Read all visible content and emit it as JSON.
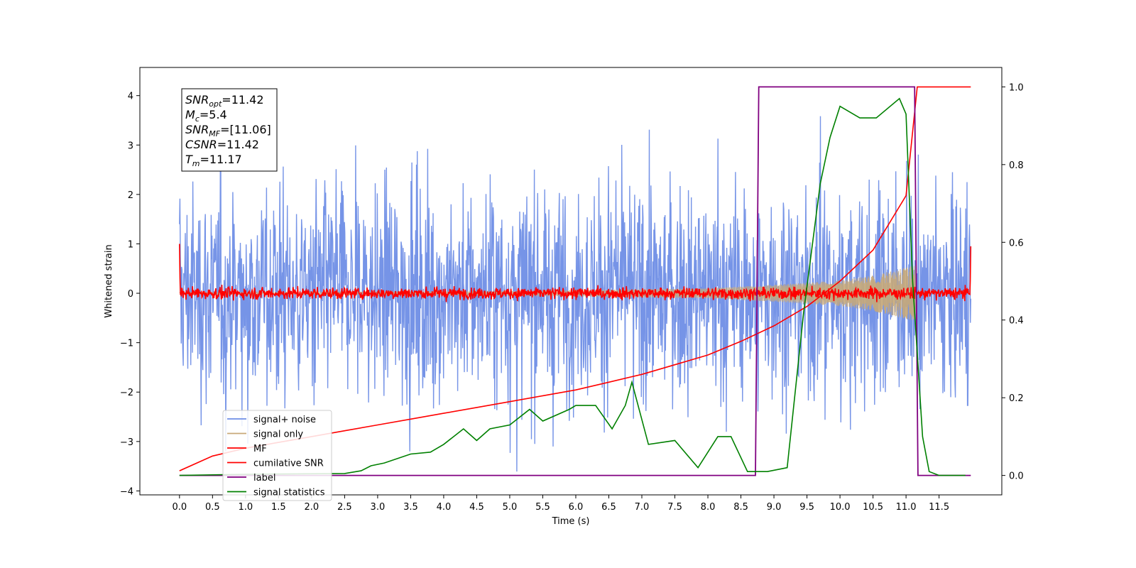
{
  "chart_data": {
    "type": "line",
    "xlabel": "Time (s)",
    "ylabel": "Whitened strain",
    "xlim": [
      -0.6,
      12.45
    ],
    "ylim": [
      -4.08,
      4.57
    ],
    "y2lim": [
      -0.05,
      1.05
    ],
    "x_ticks": [
      "0.0",
      "0.5",
      "1.0",
      "1.5",
      "2.0",
      "2.5",
      "3.0",
      "3.5",
      "4.0",
      "4.5",
      "5.0",
      "5.5",
      "6.0",
      "6.5",
      "7.0",
      "7.5",
      "8.0",
      "8.5",
      "9.0",
      "9.5",
      "10.0",
      "10.5",
      "11.0",
      "11.5"
    ],
    "y_ticks": [
      "−4",
      "−3",
      "−2",
      "−1",
      "0",
      "1",
      "2",
      "3",
      "4"
    ],
    "y2_ticks": [
      "0.0",
      "0.2",
      "0.4",
      "0.6",
      "0.8",
      "1.0"
    ],
    "legend_position": "lower-left",
    "annotation_lines": [
      {
        "name": "SNR",
        "sub": "opt",
        "value": "=11.42"
      },
      {
        "name": "M",
        "sub": "c",
        "value": "=5.4"
      },
      {
        "name": "SNR",
        "sub": "MF",
        "value": "=[11.06]"
      },
      {
        "name": "CSNR",
        "sub": "",
        "value": "=11.42"
      },
      {
        "name": "T",
        "sub": "m",
        "value": "=11.17"
      }
    ],
    "series": [
      {
        "name": "signal+ noise",
        "axis": "left",
        "color": "#6f8ee6",
        "kind": "noise_band",
        "x_range": [
          0.0,
          11.98
        ],
        "envelope_approx": 3.2
      },
      {
        "name": "signal only",
        "axis": "left",
        "color": "#c8a878",
        "kind": "chirp",
        "x_range": [
          0.0,
          11.17
        ],
        "amplitude_envelope": [
          [
            0.0,
            0.02
          ],
          [
            5.0,
            0.04
          ],
          [
            8.0,
            0.1
          ],
          [
            9.0,
            0.17
          ],
          [
            10.0,
            0.26
          ],
          [
            10.5,
            0.36
          ],
          [
            11.0,
            0.52
          ],
          [
            11.17,
            0.58
          ]
        ]
      },
      {
        "name": "MF",
        "axis": "left",
        "color": "#ff0000",
        "kind": "noise_band",
        "x_range": [
          0.0,
          11.98
        ],
        "envelope_approx": 0.15,
        "edges": [
          [
            0.0,
            1.0
          ],
          [
            11.98,
            0.95
          ]
        ]
      },
      {
        "name": "cumilative SNR",
        "axis": "right",
        "color": "#ff0000",
        "x": [
          0.0,
          0.5,
          1.0,
          1.5,
          2.0,
          2.5,
          3.0,
          3.5,
          4.0,
          4.5,
          5.0,
          5.5,
          6.0,
          6.5,
          7.0,
          7.5,
          8.0,
          8.5,
          9.0,
          9.5,
          10.0,
          10.5,
          11.0,
          11.17,
          11.98
        ],
        "y": [
          0.012,
          0.05,
          0.07,
          0.085,
          0.1,
          0.115,
          0.13,
          0.145,
          0.16,
          0.175,
          0.19,
          0.205,
          0.22,
          0.24,
          0.26,
          0.285,
          0.31,
          0.345,
          0.385,
          0.435,
          0.5,
          0.58,
          0.72,
          1.0,
          1.0
        ]
      },
      {
        "name": "label",
        "axis": "right",
        "color": "#800080",
        "x": [
          0.0,
          8.72,
          8.77,
          11.13,
          11.18,
          11.98
        ],
        "y": [
          0.0,
          0.0,
          1.0,
          1.0,
          0.0,
          0.0
        ]
      },
      {
        "name": "signal statistics",
        "axis": "right",
        "color": "#008000",
        "x": [
          0.0,
          1.0,
          2.5,
          2.75,
          2.9,
          3.1,
          3.5,
          3.8,
          4.0,
          4.3,
          4.5,
          4.7,
          5.0,
          5.3,
          5.5,
          5.9,
          6.0,
          6.3,
          6.55,
          6.75,
          6.85,
          7.1,
          7.5,
          7.85,
          8.15,
          8.35,
          8.6,
          8.9,
          9.2,
          9.45,
          9.7,
          9.85,
          10.0,
          10.3,
          10.55,
          10.9,
          11.0,
          11.1,
          11.25,
          11.35,
          11.5,
          11.9
        ],
        "y": [
          0.0,
          0.003,
          0.005,
          0.012,
          0.025,
          0.032,
          0.055,
          0.06,
          0.08,
          0.12,
          0.09,
          0.12,
          0.13,
          0.17,
          0.14,
          0.17,
          0.18,
          0.18,
          0.12,
          0.18,
          0.24,
          0.08,
          0.09,
          0.02,
          0.1,
          0.1,
          0.01,
          0.01,
          0.02,
          0.42,
          0.75,
          0.87,
          0.95,
          0.92,
          0.92,
          0.97,
          0.93,
          0.5,
          0.1,
          0.01,
          0.0,
          0.0
        ]
      }
    ]
  }
}
